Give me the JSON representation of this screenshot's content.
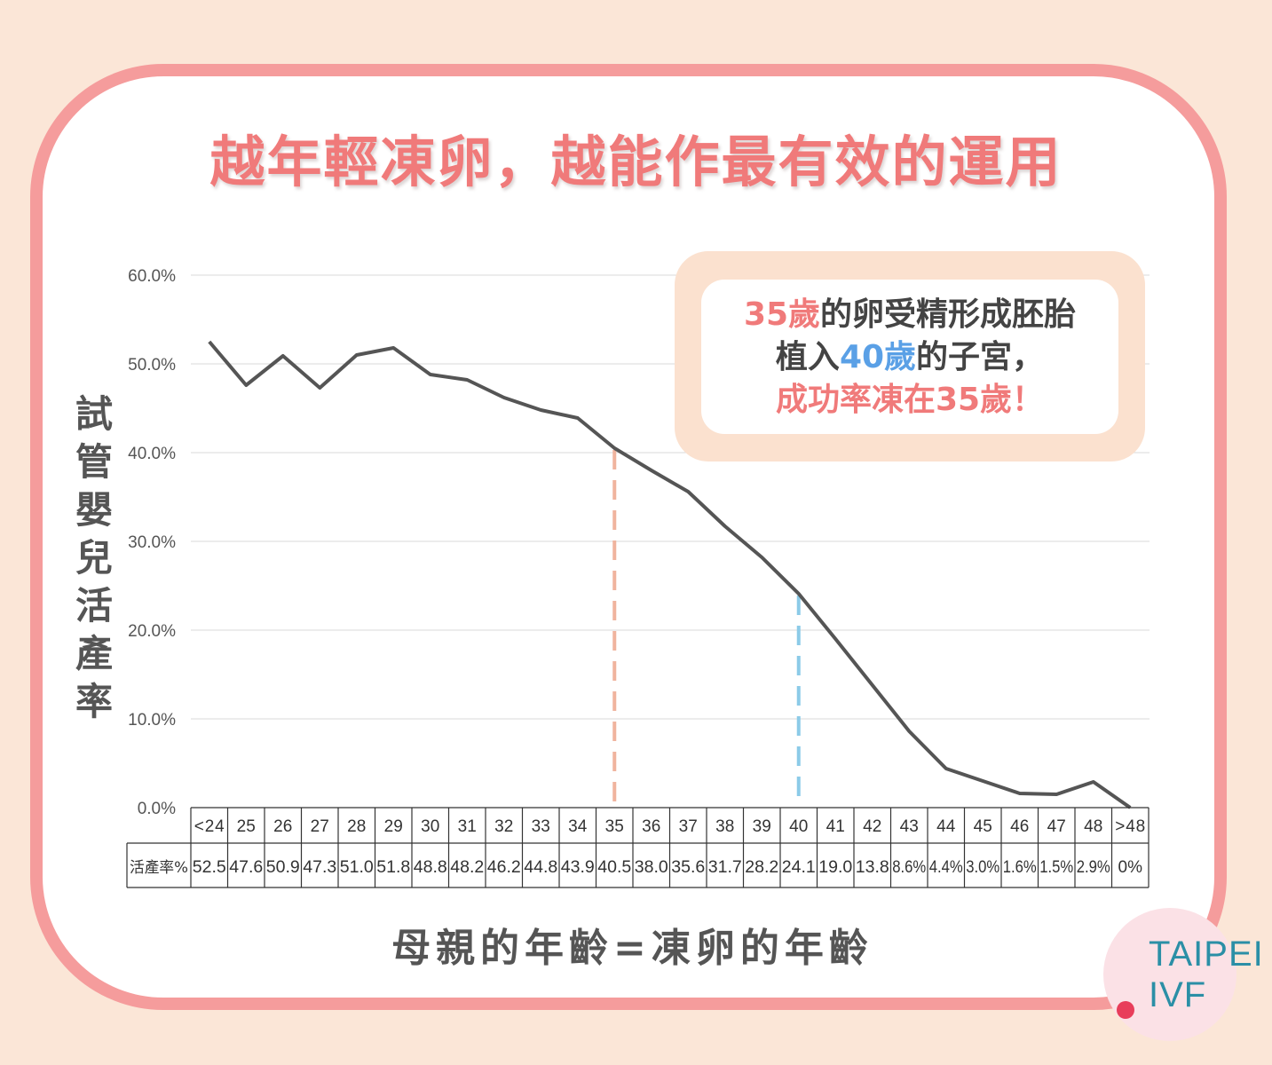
{
  "title": "越年輕凍卵，越能作最有效的運用",
  "callout": {
    "line1_red": "35歲",
    "line1_rest": "的卵受精形成胚胎",
    "line2_pre": "植入",
    "line2_blue": "40歲",
    "line2_rest": "的子宮，",
    "line3": "成功率凍在35歲！"
  },
  "logo": {
    "line1": "TAIPEI",
    "line2": "IVF"
  },
  "chart_data": {
    "type": "line",
    "xlabel": "母親的年齡=凍卵的年齡",
    "ylabel": "試管嬰兒活產率",
    "categories": [
      "<24",
      "25",
      "26",
      "27",
      "28",
      "29",
      "30",
      "31",
      "32",
      "33",
      "34",
      "35",
      "36",
      "37",
      "38",
      "39",
      "40",
      "41",
      "42",
      "43",
      "44",
      "45",
      "46",
      "47",
      "48",
      ">48"
    ],
    "values": [
      52.5,
      47.6,
      50.9,
      47.3,
      51.0,
      51.8,
      48.8,
      48.2,
      46.2,
      44.8,
      43.9,
      40.5,
      38.0,
      35.6,
      31.7,
      28.2,
      24.1,
      19.0,
      13.8,
      8.6,
      4.4,
      3.0,
      1.6,
      1.5,
      2.9,
      0
    ],
    "table_row_label": "活產率%",
    "table_values": [
      "52.5",
      "47.6",
      "50.9",
      "47.3",
      "51.0",
      "51.8",
      "48.8",
      "48.2",
      "46.2",
      "44.8",
      "43.9",
      "40.5",
      "38.0",
      "35.6",
      "31.7",
      "28.2",
      "24.1",
      "19.0",
      "13.8",
      "8.6%",
      "4.4%",
      "3.0%",
      "1.6%",
      "1.5%",
      "2.9%",
      "0%"
    ],
    "y_ticks": [
      "0.0%",
      "10.0%",
      "20.0%",
      "30.0%",
      "40.0%",
      "50.0%",
      "60.0%"
    ],
    "ylim": [
      0,
      60
    ],
    "grid": true,
    "markers": [
      {
        "category": "35",
        "color": "#f0b49e"
      },
      {
        "category": "40",
        "color": "#8ccbe8"
      }
    ],
    "line_color": "#555555"
  }
}
